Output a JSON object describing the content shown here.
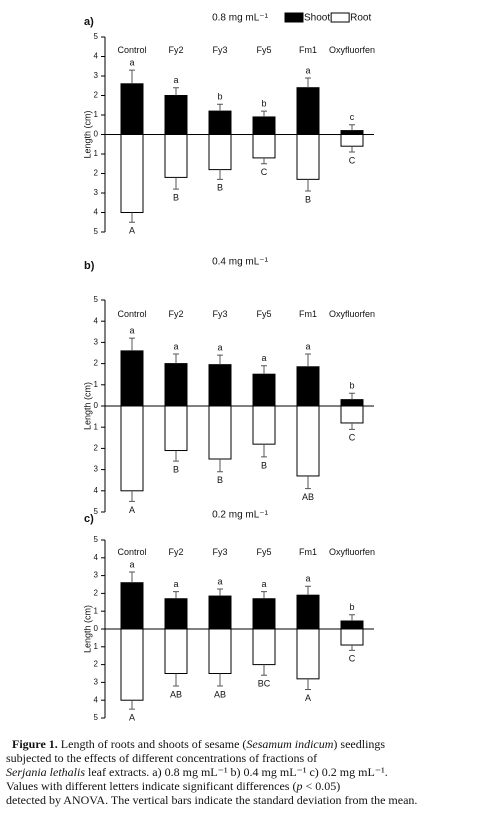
{
  "chart_data": [
    {
      "type": "bar",
      "panel": "a)",
      "title": "0.8 mg mL⁻¹",
      "ylabel": "Length (cm)",
      "legend": true,
      "categories": [
        "Control",
        "Fy2",
        "Fy3",
        "Fy5",
        "Fm1",
        "Oxyfluorfen"
      ],
      "ylim": [
        -5,
        5
      ],
      "yticks": [
        {
          "value": -5,
          "label": "5"
        },
        {
          "value": -4,
          "label": "4"
        },
        {
          "value": -3,
          "label": "3"
        },
        {
          "value": -2,
          "label": "2"
        },
        {
          "value": -1,
          "label": "1"
        },
        0,
        1,
        2,
        3,
        4,
        5
      ],
      "series": [
        {
          "name": "Shoot",
          "color": "#000000",
          "values": [
            2.6,
            2.0,
            1.2,
            0.9,
            2.4,
            0.2
          ],
          "error": [
            0.7,
            0.4,
            0.35,
            0.3,
            0.5,
            0.3
          ],
          "letters": [
            "a",
            "a",
            "b",
            "b",
            "a",
            "c"
          ]
        },
        {
          "name": "Root",
          "color": "#ffffff",
          "values": [
            -4.0,
            -2.2,
            -1.8,
            -1.2,
            -2.3,
            -0.6
          ],
          "error": [
            0.5,
            0.6,
            0.5,
            0.3,
            0.6,
            0.3
          ],
          "letters": [
            "A",
            "B",
            "B",
            "C",
            "B",
            "C"
          ]
        }
      ]
    },
    {
      "type": "bar",
      "panel": "b)",
      "title": "0.4 mg mL⁻¹",
      "ylabel": "Length (cm)",
      "legend": false,
      "categories": [
        "Control",
        "Fy2",
        "Fy3",
        "Fy5",
        "Fm1",
        "Oxyfluorfen"
      ],
      "ylim": [
        -5,
        5
      ],
      "yticks": [
        {
          "value": -5,
          "label": "5"
        },
        {
          "value": -4,
          "label": "4"
        },
        {
          "value": -3,
          "label": "3"
        },
        {
          "value": -2,
          "label": "2"
        },
        {
          "value": -1,
          "label": "1"
        },
        0,
        1,
        2,
        3,
        4,
        5
      ],
      "series": [
        {
          "color": "#000000",
          "values": [
            2.6,
            2.0,
            1.95,
            1.5,
            1.85,
            0.3
          ],
          "error": [
            0.6,
            0.45,
            0.45,
            0.4,
            0.6,
            0.3
          ],
          "letters": [
            "a",
            "a",
            "a",
            "a",
            "a",
            "b"
          ]
        },
        {
          "color": "#ffffff",
          "values": [
            -4.0,
            -2.1,
            -2.5,
            -1.8,
            -3.3,
            -0.8
          ],
          "error": [
            0.5,
            0.5,
            0.6,
            0.6,
            0.6,
            0.3
          ],
          "letters": [
            "A",
            "B",
            "B",
            "B",
            "AB",
            "C"
          ]
        }
      ]
    },
    {
      "type": "bar",
      "panel": "c)",
      "title": "0.2 mg mL⁻¹",
      "ylabel": "Length (cm)",
      "legend": false,
      "categories": [
        "Control",
        "Fy2",
        "Fy3",
        "Fy5",
        "Fm1",
        "Oxyfluorfen"
      ],
      "ylim": [
        -5,
        5
      ],
      "yticks": [
        {
          "value": -5,
          "label": "5"
        },
        {
          "value": -4,
          "label": "4"
        },
        {
          "value": -3,
          "label": "3"
        },
        {
          "value": -2,
          "label": "2"
        },
        {
          "value": -1,
          "label": "1"
        },
        0,
        1,
        2,
        3,
        4,
        5
      ],
      "series": [
        {
          "color": "#000000",
          "values": [
            2.6,
            1.7,
            1.85,
            1.7,
            1.9,
            0.45
          ],
          "error": [
            0.6,
            0.4,
            0.4,
            0.4,
            0.5,
            0.35
          ],
          "letters": [
            "a",
            "a",
            "a",
            "a",
            "a",
            "b"
          ]
        },
        {
          "color": "#ffffff",
          "values": [
            -4.0,
            -2.5,
            -2.5,
            -2.0,
            -2.8,
            -0.9
          ],
          "error": [
            0.5,
            0.7,
            0.7,
            0.6,
            0.6,
            0.3
          ],
          "letters": [
            "A",
            "AB",
            "AB",
            "BC",
            "A",
            "C"
          ]
        }
      ]
    }
  ],
  "caption": {
    "lines": [
      [
        {
          "text": "Figure 1.",
          "bold": true
        },
        {
          "text": " Length of roots and shoots of sesame ("
        },
        {
          "text": "Sesamum indicum",
          "italic": true
        },
        {
          "text": ") seedlings"
        }
      ],
      [
        {
          "text": "subjected to the effects of different concentrations of fractions of"
        }
      ],
      [
        {
          "text": "Serjania lethalis",
          "italic": true
        },
        {
          "text": " leaf extracts. a) 0.8 mg mL⁻¹ b) 0.4 mg mL⁻¹ c) 0.2 mg mL⁻¹."
        }
      ],
      [
        {
          "text": "Values with different letters indicate significant differences ("
        },
        {
          "text": "p",
          "italic": true
        },
        {
          "text": " < 0.05)"
        }
      ],
      [
        {
          "text": "detected by ANOVA. The vertical bars indicate the standard deviation from the mean."
        }
      ]
    ]
  }
}
